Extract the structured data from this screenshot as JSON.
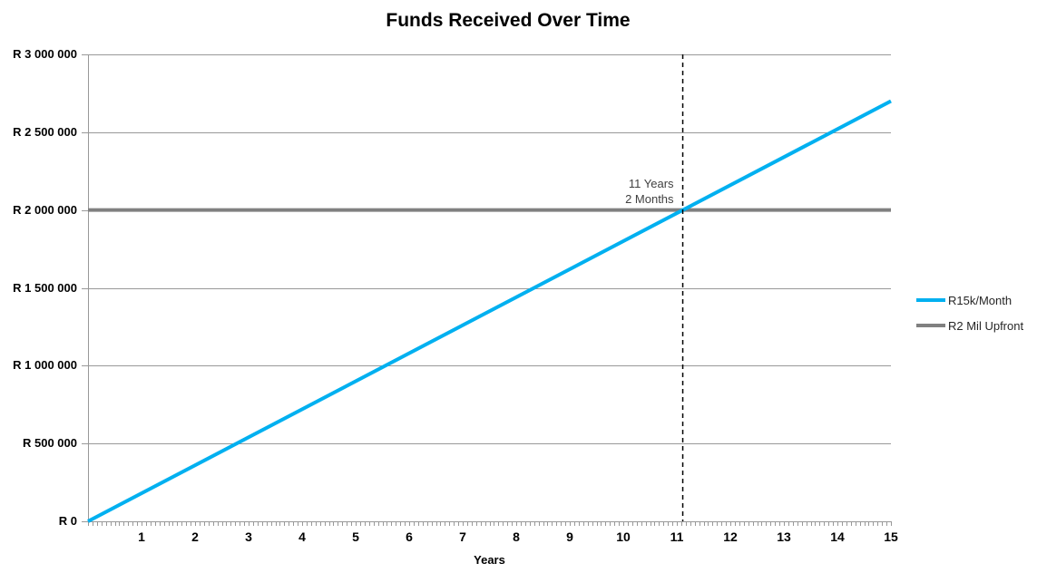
{
  "chart_data": {
    "type": "line",
    "title": "Funds Received Over Time",
    "xlabel": "Years",
    "ylabel": "",
    "xlim": [
      0,
      15
    ],
    "ylim": [
      0,
      3000000
    ],
    "grid": true,
    "legend_position": "right",
    "x_ticks": [
      1,
      2,
      3,
      4,
      5,
      6,
      7,
      8,
      9,
      10,
      11,
      12,
      13,
      14,
      15
    ],
    "minor_x_ticks_per_year": 12,
    "y_ticks": [
      {
        "value": 0,
        "label": "R 0"
      },
      {
        "value": 500000,
        "label": "R 500 000"
      },
      {
        "value": 1000000,
        "label": "R 1 000 000"
      },
      {
        "value": 1500000,
        "label": "R 1 500 000"
      },
      {
        "value": 2000000,
        "label": "R 2 000 000"
      },
      {
        "value": 2500000,
        "label": "R 2 500 000"
      },
      {
        "value": 3000000,
        "label": "R 3 000 000"
      }
    ],
    "series": [
      {
        "name": "R15k/Month",
        "color": "#00B0F0",
        "width": 4,
        "x": [
          0,
          15
        ],
        "y": [
          0,
          2700000
        ]
      },
      {
        "name": "R2 Mil Upfront",
        "color": "#808080",
        "width": 4,
        "x": [
          0,
          15
        ],
        "y": [
          2000000,
          2000000
        ]
      }
    ],
    "annotation": {
      "lines": [
        "11 Years",
        "2 Months"
      ],
      "x_years": 11.111,
      "y_value": 2000000,
      "marker": "dashed-vertical-line"
    },
    "colors": {
      "gridline": "#999999",
      "axis": "#999999",
      "annotation_line": "#000000",
      "label_text": "#000000",
      "annotation_text": "#404040"
    }
  }
}
